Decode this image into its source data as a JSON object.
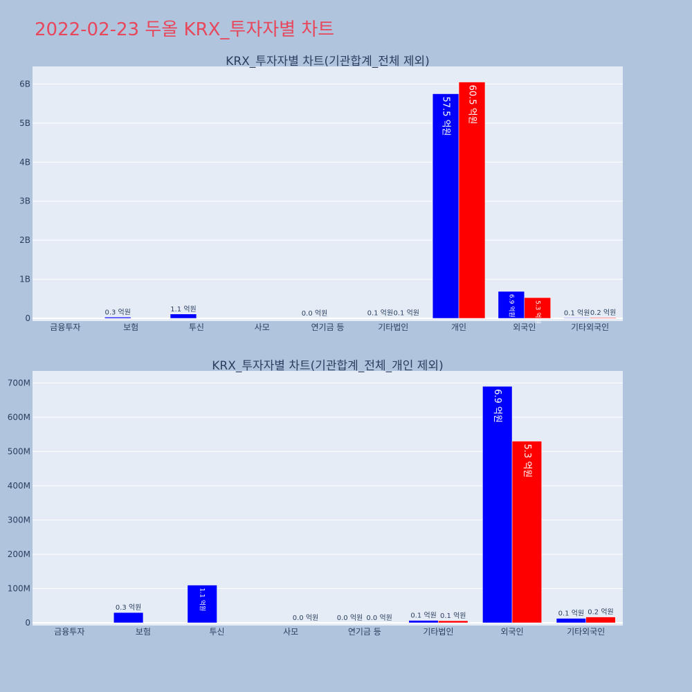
{
  "page": {
    "title": "2022-02-23 두올 KRX_투자자별 차트"
  },
  "chart_data": [
    {
      "type": "bar",
      "title": "KRX_투자자별 차트(기관합계_전체 제외)",
      "categories": [
        "금융투자",
        "보험",
        "투신",
        "사모",
        "연기금 등",
        "기타법인",
        "개인",
        "외국인",
        "기타외국인"
      ],
      "series": [
        {
          "color": "#0000ff",
          "values": [
            0,
            30000000,
            110000000,
            0,
            0,
            7000000,
            5750000000,
            690000000,
            13000000
          ],
          "labels": [
            "",
            "0.3 억원",
            "1.1 억원",
            "",
            "0.0 억원",
            "0.1 억원",
            "57.5 억원",
            "6.9 억원",
            "0.1 억원"
          ]
        },
        {
          "color": "#ff0000",
          "values": [
            0,
            0,
            0,
            0,
            0,
            6000000,
            6050000000,
            530000000,
            17000000
          ],
          "labels": [
            "",
            "",
            "",
            "",
            "",
            "0.1 억원",
            "60.5 억원",
            "5.3 억원",
            "0.2 억원"
          ]
        }
      ],
      "ylim": [
        0,
        6450000000
      ],
      "yticks": [
        0,
        1000000000,
        2000000000,
        3000000000,
        4000000000,
        5000000000,
        6000000000
      ],
      "ytick_labels": [
        "0",
        "1B",
        "2B",
        "3B",
        "4B",
        "5B",
        "6B"
      ],
      "xlabel": "",
      "ylabel": "",
      "legend": false,
      "grid": true
    },
    {
      "type": "bar",
      "title": "KRX_투자자별 차트(기관합계_전체_개인 제외)",
      "categories": [
        "금융투자",
        "보험",
        "투신",
        "사모",
        "연기금 등",
        "기타법인",
        "외국인",
        "기타외국인"
      ],
      "series": [
        {
          "color": "#0000ff",
          "values": [
            0,
            30000000,
            110000000,
            0,
            0,
            7000000,
            690000000,
            13000000
          ],
          "labels": [
            "",
            "0.3 억원",
            "1.1 억원",
            "",
            "0.0 억원",
            "0.1 억원",
            "6.9 억원",
            "0.1 억원"
          ]
        },
        {
          "color": "#ff0000",
          "values": [
            0,
            0,
            0,
            0,
            0,
            6000000,
            530000000,
            17000000
          ],
          "labels": [
            "",
            "",
            "",
            "0.0 억원",
            "0.0 억원",
            "0.1 억원",
            "5.3 억원",
            "0.2 억원"
          ]
        }
      ],
      "ylim": [
        0,
        735000000
      ],
      "yticks": [
        0,
        100000000,
        200000000,
        300000000,
        400000000,
        500000000,
        600000000,
        700000000
      ],
      "ytick_labels": [
        "0",
        "100M",
        "200M",
        "300M",
        "400M",
        "500M",
        "600M",
        "700M"
      ],
      "xlabel": "",
      "ylabel": "",
      "legend": false,
      "grid": true
    }
  ]
}
